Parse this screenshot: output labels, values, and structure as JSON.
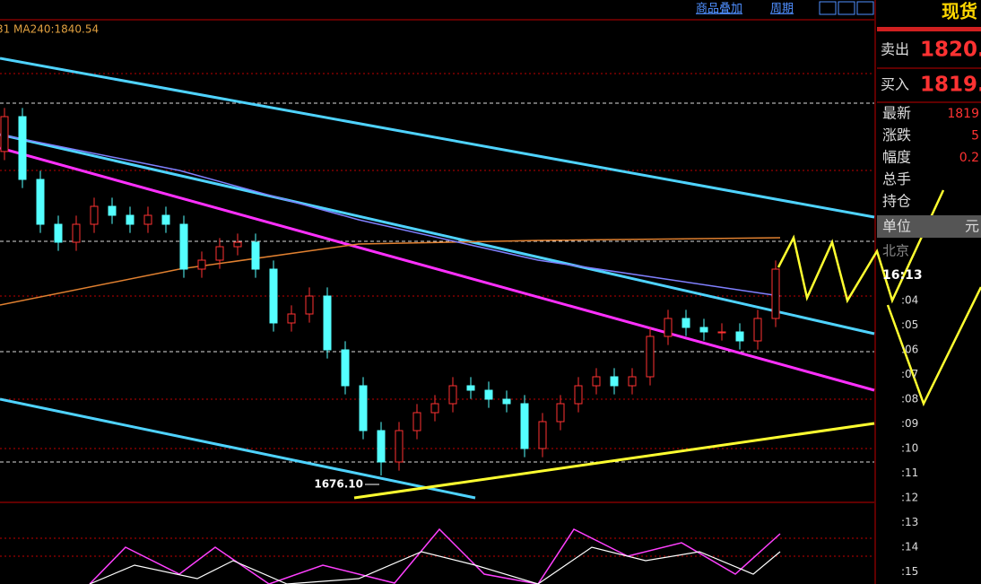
{
  "toolbar": {
    "overlay": "商品叠加",
    "period": "周期"
  },
  "indicator": {
    "prefix": "31",
    "text": "MA240:1840.54"
  },
  "chart_data": {
    "type": "candlestick",
    "open": [
      1900,
      1924.1,
      1880.7,
      1849.7,
      1837.3,
      1849.7,
      1862.1,
      1855.9,
      1849.7,
      1855.9,
      1849.7,
      1818.7,
      1824.9,
      1834.2,
      1837.3,
      1818.7,
      1781.5,
      1787.7,
      1800.1,
      1762.9,
      1738.1,
      1707.1,
      1685.4,
      1707.1,
      1719.5,
      1725.7,
      1738.1,
      1735,
      1728.8,
      1725.7,
      1694.7,
      1713.3,
      1725.7,
      1738.1,
      1744.3,
      1738.1,
      1744.3,
      1772.2,
      1784.6,
      1778.4,
      1775.3,
      1775.3,
      1769.1,
      1784.6
    ],
    "high": [
      1930.1,
      1930.1,
      1886.7,
      1855.7,
      1855.7,
      1868.1,
      1868.1,
      1861.9,
      1861.9,
      1861.9,
      1855.7,
      1830.9,
      1840.2,
      1843.3,
      1843.3,
      1824.7,
      1793.7,
      1806.1,
      1806.1,
      1768.9,
      1744.1,
      1713.1,
      1713.1,
      1725.5,
      1731.7,
      1744.1,
      1744.1,
      1741,
      1734.8,
      1731.7,
      1719.3,
      1731.7,
      1744.1,
      1750.3,
      1750.3,
      1750.3,
      1778.2,
      1790.6,
      1790.6,
      1784.4,
      1781.3,
      1781.3,
      1790.6,
      1824.7
    ],
    "low": [
      1894,
      1874.7,
      1843.7,
      1831.3,
      1831.3,
      1843.7,
      1849.9,
      1843.7,
      1843.7,
      1843.7,
      1812.7,
      1812.7,
      1818.9,
      1828.2,
      1812.7,
      1775.5,
      1775.5,
      1781.7,
      1756.9,
      1732.1,
      1701.1,
      1676.1,
      1679.4,
      1701.1,
      1713.5,
      1719.7,
      1729,
      1722.8,
      1719.7,
      1688.7,
      1688.7,
      1707.3,
      1719.7,
      1732.1,
      1732.1,
      1732.1,
      1738.3,
      1766.2,
      1772.4,
      1769.3,
      1769.3,
      1763.1,
      1763.1,
      1778.6
    ],
    "close": [
      1924.1,
      1880.7,
      1849.7,
      1837.3,
      1849.7,
      1862.1,
      1855.9,
      1849.7,
      1855.9,
      1849.7,
      1818.7,
      1824.9,
      1834.2,
      1837.3,
      1818.7,
      1781.5,
      1787.7,
      1800.1,
      1762.9,
      1738.1,
      1707.1,
      1685.4,
      1707.1,
      1719.5,
      1725.7,
      1738.1,
      1735,
      1728.8,
      1725.7,
      1694.7,
      1713.3,
      1725.7,
      1738.1,
      1744.3,
      1738.1,
      1744.3,
      1772.2,
      1784.6,
      1778.4,
      1775.3,
      1775.3,
      1769.1,
      1784.6,
      1818.7
    ],
    "ylim": [
      1657.5,
      1992.3
    ],
    "annotation": {
      "value": 1676.1,
      "label": "1676.10"
    },
    "up_color": "#ff3232",
    "down_color": "#54ffff"
  },
  "panel": {
    "title": "现货",
    "sell": {
      "label": "卖出",
      "value": "1820."
    },
    "buy": {
      "label": "买入",
      "value": "1819."
    },
    "rows": [
      {
        "label": "最新",
        "value": "1819"
      },
      {
        "label": "涨跌",
        "value": "5"
      },
      {
        "label": "幅度",
        "value": "0.2"
      },
      {
        "label": "总手"
      },
      {
        "label": "持仓"
      }
    ],
    "unit": {
      "label": "单位",
      "value": "元"
    },
    "city": "北京",
    "time": "16:13",
    "ticks": [
      ":04",
      ":05",
      ":06",
      ":07",
      ":08",
      ":09",
      ":10",
      ":11",
      ":12",
      ":13",
      ":14",
      ":15"
    ]
  }
}
